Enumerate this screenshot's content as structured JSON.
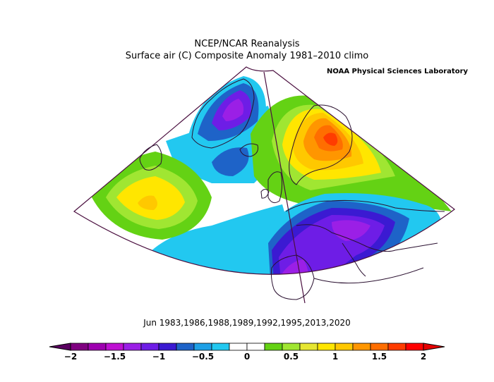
{
  "header": {
    "title": "NCEP/NCAR Reanalysis",
    "subtitle": "Surface air (C) Composite Anomaly 1981–2010 climo",
    "credit": "NOAA Physical Sciences Laboratory"
  },
  "caption": "Jun 1983,1986,1988,1989,1992,1995,2013,2020",
  "colorbar": {
    "colors": [
      "#7f0080",
      "#9e00b0",
      "#be10d2",
      "#9b1fe6",
      "#6e1de6",
      "#3b1ad2",
      "#1e63c8",
      "#1ea0e6",
      "#22c8f0",
      "#ffffff",
      "#ffffff",
      "#64d214",
      "#a0e632",
      "#e6e632",
      "#ffe600",
      "#ffc800",
      "#ff9600",
      "#ff6e00",
      "#ff3c00",
      "#ff0000"
    ],
    "ticks": [
      "−2",
      "−1.5",
      "−1",
      "−0.5",
      "0",
      "0.5",
      "1",
      "1.5",
      "2"
    ]
  },
  "palette": {
    "outline": "#4b1040",
    "land": "#2a1030"
  }
}
